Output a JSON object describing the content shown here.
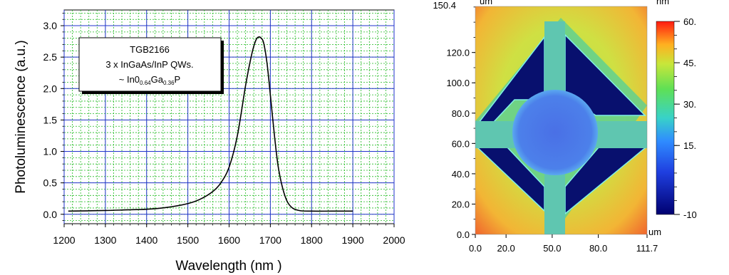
{
  "chart_data": [
    {
      "type": "line",
      "title": "",
      "xlabel": "Wavelength (nm )",
      "ylabel": "Photoluminescence (a.u.)",
      "xlim": [
        1200,
        2000
      ],
      "ylim": [
        -0.15,
        3.25
      ],
      "xticks": [
        "1200",
        "1300",
        "1400",
        "1500",
        "1600",
        "1700",
        "1800",
        "1900",
        "2000"
      ],
      "yticks": [
        "0.0",
        "0.5",
        "1.0",
        "1.5",
        "2.0",
        "2.5",
        "3.0"
      ],
      "grid": true,
      "annotation": {
        "line1": "TGB2166",
        "line2": "3 x InGaAs/InP QWs.",
        "line3_prefix": "~ In0",
        "line3_sub1": "0.64",
        "line3_mid": "Ga",
        "line3_sub2": "0.36",
        "line3_suffix": "P"
      },
      "series": [
        {
          "x": [
            1210,
            1300,
            1350,
            1400,
            1450,
            1500,
            1530,
            1560,
            1580,
            1600,
            1620,
            1640,
            1655,
            1665,
            1672,
            1678,
            1684,
            1692,
            1700,
            1710,
            1720,
            1735,
            1750,
            1770,
            1800,
            1850,
            1900
          ],
          "y": [
            0.05,
            0.06,
            0.07,
            0.08,
            0.11,
            0.17,
            0.24,
            0.36,
            0.5,
            0.75,
            1.25,
            2.05,
            2.55,
            2.77,
            2.82,
            2.8,
            2.72,
            2.4,
            1.9,
            1.25,
            0.72,
            0.3,
            0.12,
            0.06,
            0.05,
            0.05,
            0.05
          ]
        }
      ]
    },
    {
      "type": "heatmap",
      "title": "",
      "x_unit": "um",
      "y_unit": "um",
      "z_unit": "nm",
      "xticks": [
        "0.0",
        "20.0",
        "50.0",
        "80.0",
        "111.7"
      ],
      "yticks": [
        "0.0",
        "20.0",
        "40.0",
        "60.0",
        "80.0",
        "100.0",
        "120.0",
        "150.4"
      ],
      "xlim": [
        0,
        111.7
      ],
      "ylim": [
        0,
        150.4
      ],
      "colorbar_ticks": [
        "60.",
        "45.",
        "30.",
        "15.",
        "-10"
      ],
      "colorbar_range": [
        -10,
        60
      ]
    }
  ]
}
